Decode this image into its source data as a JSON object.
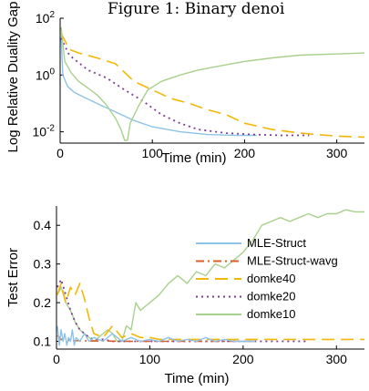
{
  "caption": "Figure 1: Binary denoi",
  "colors": {
    "MLE-Struct": "#8ec3e8",
    "MLE-Struct-wavg": "#d95f2b",
    "domke40": "#f2b705",
    "domke20": "#7d3c98",
    "domke10": "#a8d08d"
  },
  "chart_data": [
    {
      "type": "line",
      "xlabel": "Time (min)",
      "ylabel": "Log Relative Duality Gap",
      "yscale": "log",
      "xlim": [
        0,
        330
      ],
      "ylim": [
        0.004,
        100
      ],
      "xticks": [
        "0",
        "100",
        "200",
        "300"
      ],
      "yticks": [
        {
          "value": 100,
          "base": "10",
          "exp": "2"
        },
        {
          "value": 1,
          "base": "10",
          "exp": "0"
        },
        {
          "value": 0.01,
          "base": "10",
          "exp": "-2"
        }
      ],
      "grid": false,
      "series": [
        {
          "name": "MLE-Struct",
          "style": "solid",
          "x": [
            1,
            3,
            8,
            15,
            25,
            40,
            60,
            80,
            100,
            130,
            160,
            190,
            213
          ],
          "y": [
            25,
            1.0,
            0.4,
            0.25,
            0.17,
            0.1,
            0.05,
            0.025,
            0.015,
            0.01,
            0.008,
            0.0075,
            0.0075
          ]
        },
        {
          "name": "domke40",
          "style": "dashed",
          "x": [
            1,
            10,
            20,
            40,
            60,
            80,
            100,
            120,
            140,
            160,
            180,
            200,
            230,
            260,
            300,
            330
          ],
          "y": [
            30,
            8,
            6,
            4,
            2.5,
            0.6,
            0.3,
            0.15,
            0.1,
            0.06,
            0.04,
            0.02,
            0.012,
            0.009,
            0.007,
            0.0065
          ]
        },
        {
          "name": "domke20",
          "style": "dotted",
          "x": [
            1,
            10,
            30,
            50,
            70,
            90,
            110,
            130,
            150,
            180,
            210,
            240,
            270
          ],
          "y": [
            20,
            5,
            1.5,
            0.8,
            0.3,
            0.12,
            0.04,
            0.02,
            0.012,
            0.009,
            0.008,
            0.0075,
            0.0075
          ]
        },
        {
          "name": "domke10",
          "style": "solid",
          "x": [
            1,
            5,
            12,
            20,
            30,
            40,
            50,
            60,
            66,
            70,
            73,
            76,
            85,
            95,
            110,
            130,
            150,
            170,
            200,
            230,
            260,
            300,
            330
          ],
          "y": [
            50,
            3,
            1.2,
            0.6,
            0.35,
            0.2,
            0.09,
            0.03,
            0.012,
            0.005,
            0.005,
            0.02,
            0.08,
            0.3,
            0.6,
            1.0,
            1.5,
            2.0,
            3.0,
            4.0,
            5.0,
            5.5,
            6.0
          ]
        }
      ]
    },
    {
      "type": "line",
      "xlabel": "Time (min)",
      "ylabel": "Test Error",
      "xlim": [
        0,
        330
      ],
      "ylim": [
        0.08,
        0.45
      ],
      "xticks": [
        "0",
        "100",
        "200",
        "300"
      ],
      "yticks": [
        "0.1",
        "0.2",
        "0.3",
        "0.4"
      ],
      "grid": false,
      "legend": {
        "position": "center-right",
        "entries": [
          "MLE-Struct",
          "MLE-Struct-wavg",
          "domke40",
          "domke20",
          "domke10"
        ]
      },
      "series": [
        {
          "name": "MLE-Struct",
          "style": "solid",
          "x": [
            1,
            3,
            5,
            7,
            9,
            11,
            13,
            15,
            17,
            19,
            21,
            25,
            30,
            35,
            40,
            50,
            60,
            70,
            80,
            90,
            100,
            110,
            120,
            130,
            140,
            150,
            160,
            170,
            180,
            190,
            200,
            213
          ],
          "y": [
            0.14,
            0.09,
            0.13,
            0.1,
            0.12,
            0.09,
            0.11,
            0.1,
            0.13,
            0.09,
            0.11,
            0.1,
            0.12,
            0.1,
            0.11,
            0.1,
            0.12,
            0.1,
            0.11,
            0.1,
            0.105,
            0.1,
            0.11,
            0.1,
            0.105,
            0.1,
            0.11,
            0.1,
            0.105,
            0.1,
            0.1,
            0.1
          ]
        },
        {
          "name": "MLE-Struct-wavg",
          "style": "dashdot",
          "x": [
            1,
            5,
            10,
            20,
            40,
            80,
            120,
            160,
            200,
            213
          ],
          "y": [
            0.115,
            0.105,
            0.103,
            0.102,
            0.101,
            0.1,
            0.1,
            0.1,
            0.1,
            0.1
          ]
        },
        {
          "name": "domke40",
          "style": "dashed",
          "x": [
            1,
            5,
            10,
            15,
            20,
            25,
            30,
            35,
            40,
            50,
            60,
            70,
            80,
            90,
            100,
            110,
            120,
            140,
            160,
            200,
            250,
            300,
            330
          ],
          "y": [
            0.22,
            0.25,
            0.2,
            0.24,
            0.22,
            0.25,
            0.21,
            0.16,
            0.12,
            0.11,
            0.14,
            0.11,
            0.12,
            0.11,
            0.11,
            0.105,
            0.105,
            0.105,
            0.105,
            0.105,
            0.105,
            0.105,
            0.105
          ]
        },
        {
          "name": "domke20",
          "style": "dotted",
          "x": [
            1,
            5,
            10,
            15,
            20,
            25,
            30,
            35,
            40,
            50,
            60,
            80,
            100,
            150,
            200,
            250,
            270
          ],
          "y": [
            0.24,
            0.26,
            0.22,
            0.18,
            0.15,
            0.13,
            0.12,
            0.11,
            0.105,
            0.105,
            0.1,
            0.1,
            0.1,
            0.1,
            0.1,
            0.1,
            0.1
          ]
        },
        {
          "name": "domke10",
          "style": "solid",
          "x": [
            1,
            5,
            10,
            15,
            20,
            25,
            30,
            35,
            40,
            45,
            50,
            55,
            60,
            65,
            70,
            75,
            80,
            85,
            90,
            100,
            110,
            120,
            130,
            140,
            150,
            160,
            170,
            180,
            190,
            200,
            210,
            220,
            230,
            240,
            250,
            260,
            270,
            280,
            290,
            300,
            310,
            320,
            330
          ],
          "y": [
            0.22,
            0.24,
            0.2,
            0.18,
            0.15,
            0.13,
            0.12,
            0.11,
            0.1,
            0.11,
            0.12,
            0.13,
            0.12,
            0.1,
            0.1,
            0.14,
            0.13,
            0.2,
            0.18,
            0.2,
            0.22,
            0.25,
            0.27,
            0.25,
            0.28,
            0.27,
            0.3,
            0.29,
            0.31,
            0.33,
            0.36,
            0.4,
            0.41,
            0.42,
            0.41,
            0.42,
            0.43,
            0.42,
            0.43,
            0.43,
            0.44,
            0.435,
            0.435
          ]
        }
      ]
    }
  ]
}
